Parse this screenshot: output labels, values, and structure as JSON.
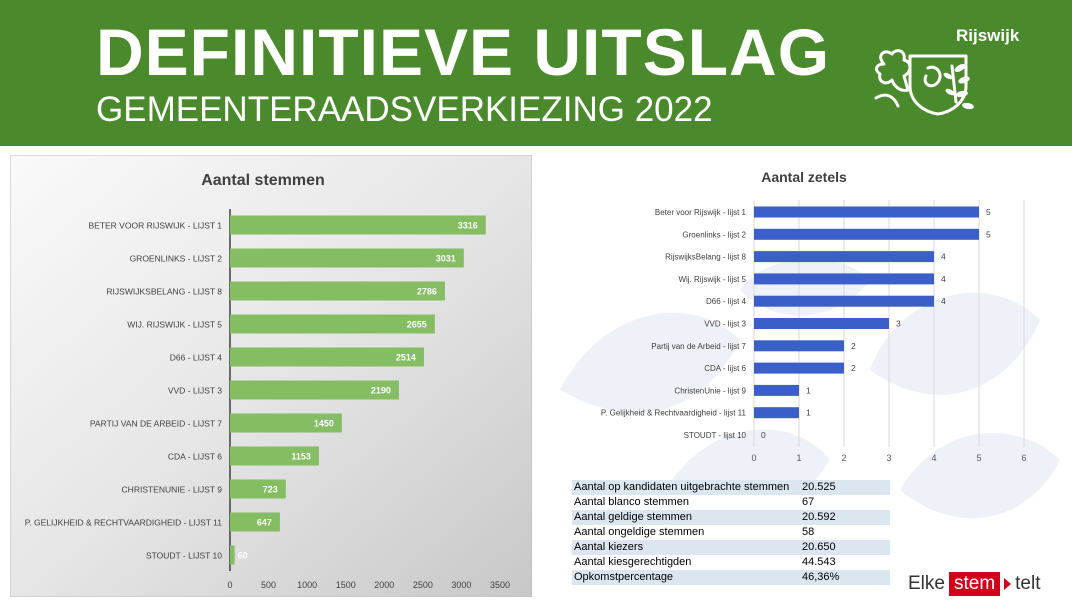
{
  "header": {
    "title": "DEFINITIEVE UITSLAG",
    "subtitle": "GEMEENTERAADSVERKIEZING 2022",
    "brand": "Rijswijk",
    "background_color": "#4a8a2c",
    "crest_icon": "rijswijk-crest-icon"
  },
  "chart_data": [
    {
      "type": "bar",
      "orientation": "horizontal",
      "title": "Aantal stemmen",
      "categories": [
        "BETER VOOR RIJSWIJK - LIJST 1",
        "GROENLINKS - LIJST 2",
        "RIJSWIJKSBELANG - LIJST 8",
        "WIJ. RIJSWIJK - LIJST 5",
        "D66 - LIJST 4",
        "VVD - LIJST 3",
        "PARTIJ VAN DE ARBEID - LIJST 7",
        "CDA - LIJST 6",
        "CHRISTENUNIE - LIJST 9",
        "P. GELIJKHEID & RECHTVAARDIGHEID - LIJST 11",
        "STOUDT - LIJST 10"
      ],
      "values": [
        3316,
        3031,
        2786,
        2655,
        2514,
        2190,
        1450,
        1153,
        723,
        647,
        60
      ],
      "xlim": [
        0,
        3500
      ],
      "xticks": [
        0,
        500,
        1000,
        1500,
        2000,
        2500,
        3000,
        3500
      ],
      "bar_color": "#84bd62",
      "grid": false,
      "data_labels": true
    },
    {
      "type": "bar",
      "orientation": "horizontal",
      "title": "Aantal zetels",
      "categories": [
        "Beter voor Rijswijk - lijst 1",
        "Groenlinks - lijst 2",
        "RijswijksBelang - lijst 8",
        "Wij. Rijswijk - lijst 5",
        "D66 - lijst 4",
        "VVD - lijst 3",
        "Partij van de Arbeid - lijst 7",
        "CDA - lijst 6",
        "ChristenUnie - lijst 9",
        "P. Gelijkheid & Rechtvaardigheid - lijst 11",
        "STOUDT - lijst 10"
      ],
      "values": [
        5,
        5,
        4,
        4,
        4,
        3,
        2,
        2,
        1,
        1,
        0
      ],
      "xlim": [
        0,
        6
      ],
      "xticks": [
        0,
        1,
        2,
        3,
        4,
        5,
        6
      ],
      "bar_color": "#3a5fc8",
      "grid": true,
      "data_labels": true
    }
  ],
  "stats": [
    {
      "label": "Aantal op kandidaten uitgebrachte stemmen",
      "value": "20.525"
    },
    {
      "label": "Aantal blanco stemmen",
      "value": "67"
    },
    {
      "label": "Aantal geldige stemmen",
      "value": "20.592"
    },
    {
      "label": "Aantal ongeldige stemmen",
      "value": "58"
    },
    {
      "label": "Aantal kiezers",
      "value": "20.650"
    },
    {
      "label": "Aantal kiesgerechtigden",
      "value": "44.543"
    },
    {
      "label": "Opkomstpercentage",
      "value": "46,36%"
    }
  ],
  "slogan": {
    "part1": "Elke",
    "part2": "stem",
    "part3": "telt",
    "accent_color": "#d0021b"
  }
}
